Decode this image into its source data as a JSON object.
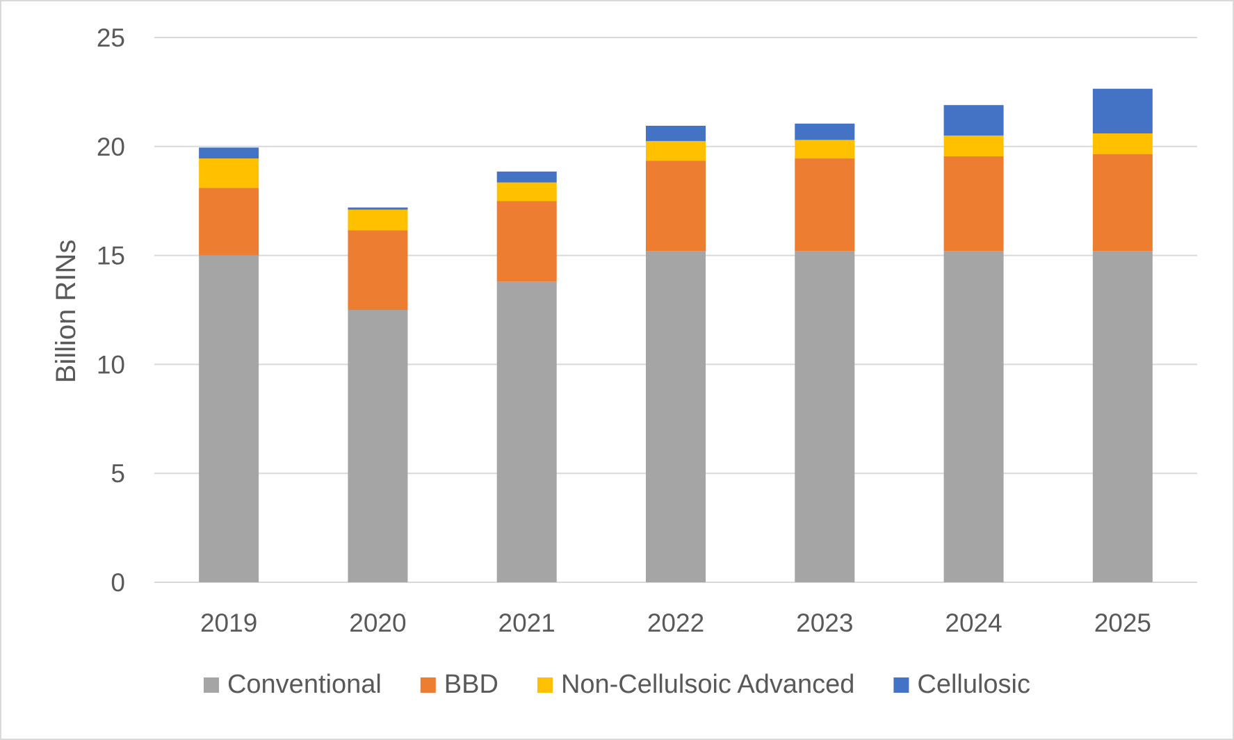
{
  "chart_data": {
    "type": "bar",
    "stacked": true,
    "title": "",
    "xlabel": "",
    "ylabel": "Billion RINs",
    "ylim": [
      0,
      25
    ],
    "yticks": [
      0,
      5,
      10,
      15,
      20,
      25
    ],
    "grid": "horizontal",
    "legend_position": "bottom",
    "categories": [
      "2019",
      "2020",
      "2021",
      "2022",
      "2023",
      "2024",
      "2025"
    ],
    "series": [
      {
        "name": "Conventional",
        "color": "#a5a5a5",
        "values": [
          15.0,
          12.5,
          13.8,
          15.2,
          15.2,
          15.2,
          15.2
        ]
      },
      {
        "name": "BBD",
        "color": "#ed7d31",
        "values": [
          3.1,
          3.65,
          3.7,
          4.15,
          4.25,
          4.35,
          4.45
        ]
      },
      {
        "name": "Non-Cellulsoic Advanced",
        "color": "#ffc000",
        "values": [
          1.35,
          0.95,
          0.85,
          0.9,
          0.85,
          0.95,
          0.95
        ]
      },
      {
        "name": "Cellulosic",
        "color": "#4472c4",
        "values": [
          0.5,
          0.1,
          0.5,
          0.7,
          0.75,
          1.4,
          2.05
        ]
      }
    ]
  }
}
